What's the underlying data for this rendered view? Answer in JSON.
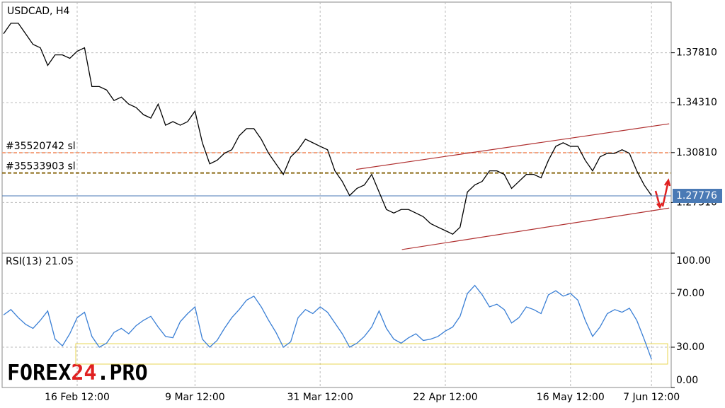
{
  "chart_data": [
    {
      "type": "line",
      "title": "USDCAD, H4",
      "categories": [
        null,
        null,
        null,
        null,
        null,
        null,
        null,
        null,
        null,
        null,
        "16 Feb 12:00",
        null,
        null,
        null,
        null,
        null,
        null,
        null,
        null,
        null,
        null,
        null,
        null,
        null,
        null,
        null,
        "9 Mar 12:00",
        null,
        null,
        null,
        null,
        null,
        null,
        null,
        null,
        null,
        null,
        null,
        null,
        null,
        null,
        null,
        null,
        "31 Mar 12:00",
        null,
        null,
        null,
        null,
        null,
        null,
        null,
        null,
        null,
        null,
        null,
        null,
        null,
        null,
        null,
        null,
        "22 Apr 12:00",
        null,
        null,
        null,
        null,
        null,
        null,
        null,
        null,
        null,
        null,
        null,
        null,
        null,
        null,
        null,
        null,
        "16 May 12:00",
        null,
        null,
        null,
        null,
        null,
        null,
        null,
        null,
        null,
        null,
        "7 Jun 12:00"
      ],
      "series": [
        {
          "name": "USDCAD",
          "color": "#000000",
          "values": [
            1.3914,
            1.3988,
            1.3988,
            1.3914,
            1.384,
            1.3816,
            1.3692,
            1.3766,
            1.3766,
            1.3742,
            1.3791,
            1.3816,
            1.3544,
            1.3544,
            1.352,
            1.3446,
            1.347,
            1.3421,
            1.3397,
            1.3347,
            1.3323,
            1.3421,
            1.3273,
            1.3298,
            1.3273,
            1.3298,
            1.3372,
            1.315,
            1.3002,
            1.3027,
            1.3076,
            1.3101,
            1.3199,
            1.3249,
            1.3249,
            1.3175,
            1.3076,
            1.3002,
            1.2928,
            1.3051,
            1.3101,
            1.3175,
            1.315,
            1.3125,
            1.3101,
            1.2953,
            1.2879,
            1.278,
            1.283,
            1.2854,
            1.2928,
            1.2805,
            1.2682,
            1.2657,
            1.2682,
            1.2682,
            1.2657,
            1.2632,
            1.2583,
            1.2558,
            1.2534,
            1.2509,
            1.2558,
            1.2805,
            1.2854,
            1.2879,
            1.2953,
            1.2953,
            1.2928,
            1.283,
            1.2879,
            1.2928,
            1.2928,
            1.2904,
            1.3027,
            1.3125,
            1.315,
            1.3125,
            1.3125,
            1.3027,
            1.2953,
            1.3051,
            1.3076,
            1.3076,
            1.3101,
            1.3076,
            1.2953,
            1.2854,
            1.278
          ]
        }
      ],
      "ylim": [
        1.2376,
        1.4136
      ],
      "yticks": [
        {
          "value": 1.3781,
          "label": "1.37810"
        },
        {
          "value": 1.3431,
          "label": "1.34310"
        },
        {
          "value": 1.3081,
          "label": "1.30810"
        },
        {
          "value": 1.2731,
          "label": "1.27310"
        }
      ],
      "grid": true,
      "levels": [
        {
          "label": "#35520742 sl",
          "value": 1.308,
          "color": "#f4a582"
        },
        {
          "label": "#35533903 sl",
          "value": 1.2938,
          "color": "#8b6914"
        }
      ],
      "current_price": {
        "value": 1.27776,
        "label": "1.27776",
        "color": "#4a7ab5"
      },
      "channel": [
        {
          "x": [
            47.9,
            90.4
          ],
          "values": [
            1.2963,
            1.3283
          ]
        },
        {
          "x": [
            54.1,
            90.4
          ],
          "values": [
            1.2401,
            1.2692
          ]
        }
      ]
    },
    {
      "type": "line",
      "title": "RSI(13) 21.05",
      "series": [
        {
          "name": "RSI",
          "color": "#3a7fd5",
          "values": [
            54,
            58,
            52,
            47,
            44,
            50,
            57,
            36,
            31,
            40,
            52,
            56,
            38,
            30,
            33,
            41,
            44,
            40,
            46,
            50,
            53,
            45,
            38,
            37,
            49,
            55,
            60,
            36,
            30,
            35,
            44,
            52,
            58,
            65,
            68,
            60,
            50,
            41,
            30,
            34,
            52,
            58,
            55,
            60,
            56,
            48,
            40,
            30,
            33,
            38,
            45,
            57,
            44,
            36,
            33,
            37,
            40,
            35,
            36,
            38,
            42,
            45,
            53,
            70,
            76,
            69,
            60,
            62,
            58,
            48,
            52,
            60,
            58,
            55,
            69,
            72,
            68,
            70,
            65,
            50,
            38,
            45,
            55,
            58,
            56,
            59,
            50,
            36,
            21.05
          ]
        }
      ],
      "ylim": [
        0,
        100
      ],
      "yticks": [
        {
          "value": 100,
          "label": "100.00"
        },
        {
          "value": 70,
          "label": "70.00"
        },
        {
          "value": 30,
          "label": "30.00"
        },
        {
          "value": 0,
          "label": "0.00"
        }
      ],
      "band": [
        17.4,
        32.6
      ]
    }
  ],
  "logo": {
    "a": "FOREX",
    "b": "24",
    "c": ".PRO"
  }
}
